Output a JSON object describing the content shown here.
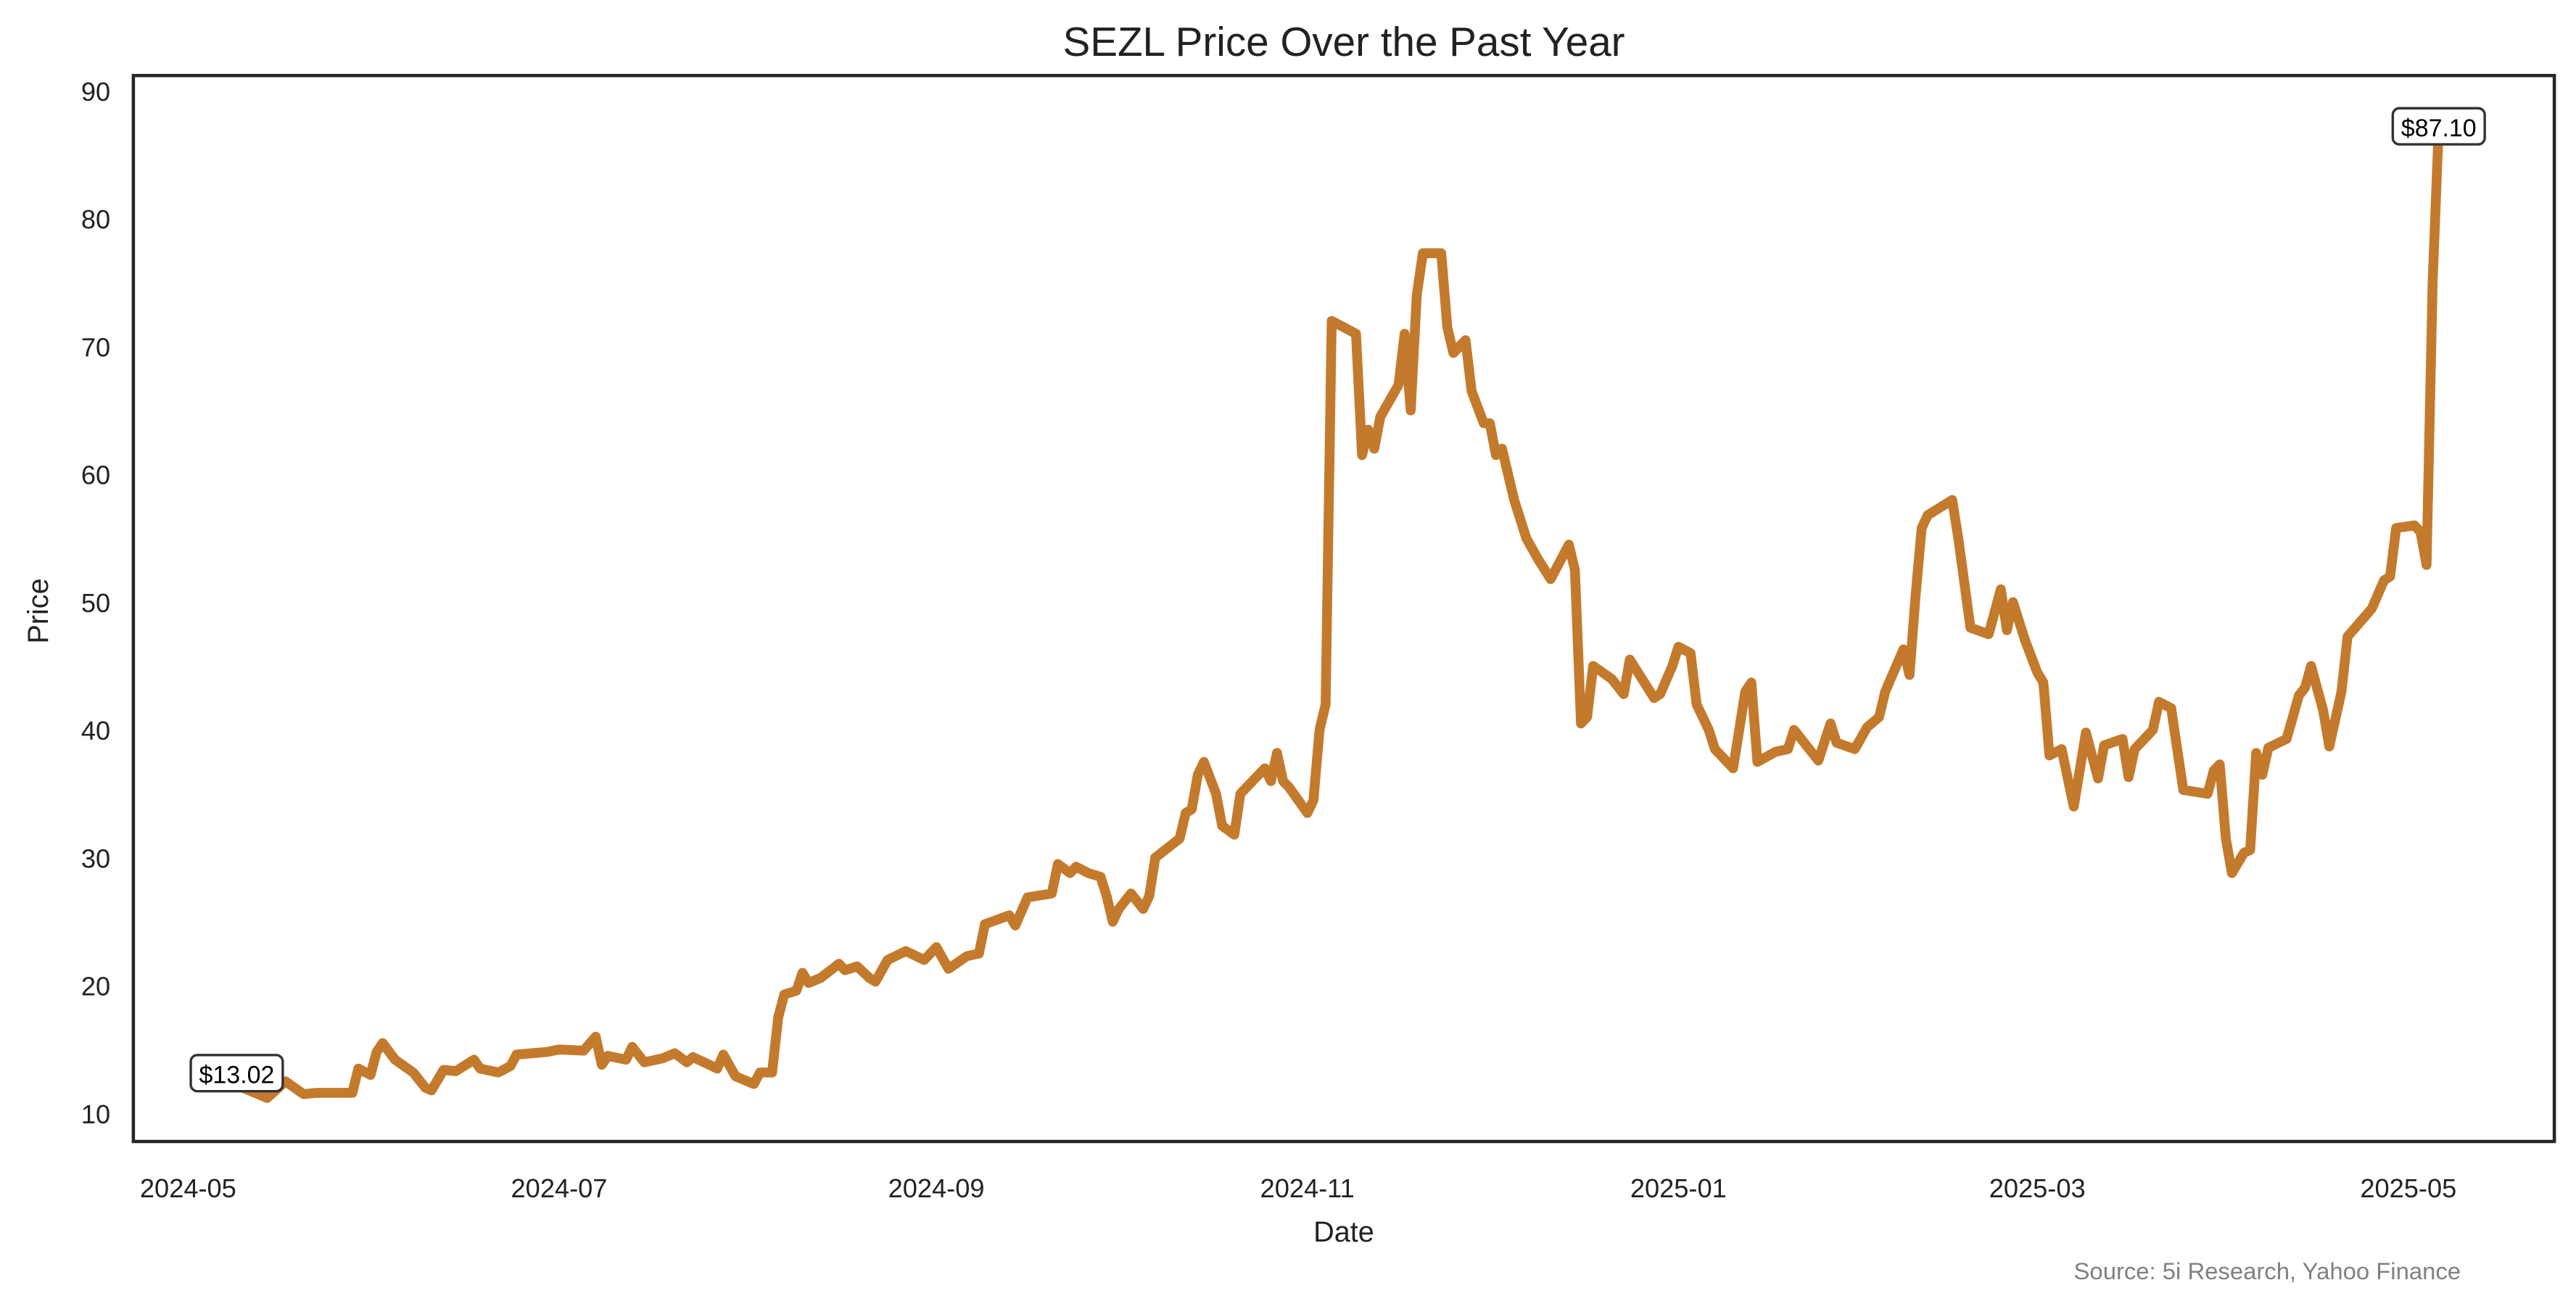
{
  "chart_data": {
    "type": "line",
    "title": "SEZL Price Over the Past Year",
    "xlabel": "Date",
    "ylabel": "Price",
    "source": "Source: 5i Research, Yahoo Finance",
    "color": "#C47A2C",
    "grid": false,
    "xlim": [
      "2024-04-22",
      "2025-05-25"
    ],
    "ylim": [
      7.8,
      91.2
    ],
    "x_ticks": [
      "2024-05",
      "2024-07",
      "2024-09",
      "2024-11",
      "2025-01",
      "2025-03",
      "2025-05"
    ],
    "y_ticks": [
      10,
      20,
      30,
      40,
      50,
      60,
      70,
      80,
      90
    ],
    "annotations": [
      {
        "date": "2024-05-09",
        "value": 13.02,
        "label": "$13.02"
      },
      {
        "date": "2025-05-06",
        "value": 87.1,
        "label": "$87.10"
      }
    ],
    "series": [
      {
        "name": "SEZL",
        "points": [
          [
            "2024-05-09",
            13.02
          ],
          [
            "2024-05-10",
            12.0
          ],
          [
            "2024-05-14",
            11.2
          ],
          [
            "2024-05-17",
            12.5
          ],
          [
            "2024-05-20",
            11.5
          ],
          [
            "2024-05-22",
            11.6
          ],
          [
            "2024-05-28",
            11.6
          ],
          [
            "2024-05-29",
            13.5
          ],
          [
            "2024-05-31",
            13.0
          ],
          [
            "2024-06-01",
            14.8
          ],
          [
            "2024-06-02",
            15.5
          ],
          [
            "2024-06-04",
            14.2
          ],
          [
            "2024-06-07",
            13.2
          ],
          [
            "2024-06-09",
            12.0
          ],
          [
            "2024-06-10",
            11.8
          ],
          [
            "2024-06-12",
            13.4
          ],
          [
            "2024-06-14",
            13.3
          ],
          [
            "2024-06-17",
            14.2
          ],
          [
            "2024-06-18",
            13.5
          ],
          [
            "2024-06-21",
            13.2
          ],
          [
            "2024-06-23",
            13.7
          ],
          [
            "2024-06-24",
            14.6
          ],
          [
            "2024-06-29",
            14.8
          ],
          [
            "2024-07-01",
            15.0
          ],
          [
            "2024-07-05",
            14.9
          ],
          [
            "2024-07-07",
            16.0
          ],
          [
            "2024-07-08",
            13.8
          ],
          [
            "2024-07-09",
            14.5
          ],
          [
            "2024-07-12",
            14.2
          ],
          [
            "2024-07-13",
            15.2
          ],
          [
            "2024-07-15",
            14.0
          ],
          [
            "2024-07-18",
            14.3
          ],
          [
            "2024-07-20",
            14.7
          ],
          [
            "2024-07-22",
            14.0
          ],
          [
            "2024-07-23",
            14.4
          ],
          [
            "2024-07-27",
            13.5
          ],
          [
            "2024-07-28",
            14.6
          ],
          [
            "2024-07-30",
            12.9
          ],
          [
            "2024-08-02",
            12.3
          ],
          [
            "2024-08-03",
            13.2
          ],
          [
            "2024-08-05",
            13.2
          ],
          [
            "2024-08-06",
            17.5
          ],
          [
            "2024-08-07",
            19.3
          ],
          [
            "2024-08-09",
            19.6
          ],
          [
            "2024-08-10",
            21.0
          ],
          [
            "2024-08-11",
            20.2
          ],
          [
            "2024-08-13",
            20.6
          ],
          [
            "2024-08-16",
            21.7
          ],
          [
            "2024-08-17",
            21.2
          ],
          [
            "2024-08-19",
            21.5
          ],
          [
            "2024-08-21",
            20.6
          ],
          [
            "2024-08-22",
            20.3
          ],
          [
            "2024-08-24",
            22.0
          ],
          [
            "2024-08-27",
            22.7
          ],
          [
            "2024-08-30",
            22.0
          ],
          [
            "2024-09-01",
            23.0
          ],
          [
            "2024-09-03",
            21.3
          ],
          [
            "2024-09-06",
            22.3
          ],
          [
            "2024-09-08",
            22.5
          ],
          [
            "2024-09-09",
            24.8
          ],
          [
            "2024-09-13",
            25.5
          ],
          [
            "2024-09-14",
            24.7
          ],
          [
            "2024-09-16",
            26.9
          ],
          [
            "2024-09-20",
            27.2
          ],
          [
            "2024-09-21",
            29.5
          ],
          [
            "2024-09-23",
            28.8
          ],
          [
            "2024-09-24",
            29.3
          ],
          [
            "2024-09-26",
            28.8
          ],
          [
            "2024-09-28",
            28.5
          ],
          [
            "2024-09-29",
            27.0
          ],
          [
            "2024-09-30",
            25.0
          ],
          [
            "2024-10-01",
            26.0
          ],
          [
            "2024-10-03",
            27.2
          ],
          [
            "2024-10-05",
            26.0
          ],
          [
            "2024-10-06",
            27.0
          ],
          [
            "2024-10-07",
            30.0
          ],
          [
            "2024-10-11",
            31.5
          ],
          [
            "2024-10-12",
            33.5
          ],
          [
            "2024-10-13",
            33.8
          ],
          [
            "2024-10-14",
            36.5
          ],
          [
            "2024-10-15",
            37.5
          ],
          [
            "2024-10-17",
            35.0
          ],
          [
            "2024-10-18",
            32.5
          ],
          [
            "2024-10-20",
            31.8
          ],
          [
            "2024-10-21",
            35.0
          ],
          [
            "2024-10-23",
            36.0
          ],
          [
            "2024-10-25",
            37.0
          ],
          [
            "2024-10-26",
            36.0
          ],
          [
            "2024-10-27",
            38.2
          ],
          [
            "2024-10-28",
            36.0
          ],
          [
            "2024-10-29",
            35.5
          ],
          [
            "2024-11-01",
            33.5
          ],
          [
            "2024-11-02",
            34.5
          ],
          [
            "2024-11-03",
            40.0
          ],
          [
            "2024-11-04",
            42.0
          ],
          [
            "2024-11-05",
            72.0
          ],
          [
            "2024-11-09",
            71.0
          ],
          [
            "2024-11-10",
            61.5
          ],
          [
            "2024-11-11",
            63.5
          ],
          [
            "2024-11-12",
            62.0
          ],
          [
            "2024-11-13",
            64.5
          ],
          [
            "2024-11-16",
            67.0
          ],
          [
            "2024-11-17",
            71.0
          ],
          [
            "2024-11-18",
            65.0
          ],
          [
            "2024-11-19",
            74.0
          ],
          [
            "2024-11-20",
            77.3
          ],
          [
            "2024-11-23",
            77.3
          ],
          [
            "2024-11-24",
            71.5
          ],
          [
            "2024-11-25",
            69.5
          ],
          [
            "2024-11-27",
            70.5
          ],
          [
            "2024-11-28",
            66.5
          ],
          [
            "2024-11-30",
            64.0
          ],
          [
            "2024-12-01",
            64.0
          ],
          [
            "2024-12-02",
            61.5
          ],
          [
            "2024-12-03",
            62.0
          ],
          [
            "2024-12-05",
            58.0
          ],
          [
            "2024-12-07",
            55.0
          ],
          [
            "2024-12-09",
            53.3
          ],
          [
            "2024-12-11",
            51.8
          ],
          [
            "2024-12-14",
            54.5
          ],
          [
            "2024-12-15",
            52.5
          ],
          [
            "2024-12-16",
            40.5
          ],
          [
            "2024-12-17",
            41.0
          ],
          [
            "2024-12-18",
            45.0
          ],
          [
            "2024-12-21",
            44.0
          ],
          [
            "2024-12-23",
            42.8
          ],
          [
            "2024-12-24",
            45.5
          ],
          [
            "2024-12-26",
            44.0
          ],
          [
            "2024-12-28",
            42.5
          ],
          [
            "2024-12-29",
            42.8
          ],
          [
            "2024-12-31",
            45.0
          ],
          [
            "2025-01-01",
            46.5
          ],
          [
            "2025-01-03",
            46.0
          ],
          [
            "2025-01-04",
            42.0
          ],
          [
            "2025-01-06",
            40.0
          ],
          [
            "2025-01-07",
            38.5
          ],
          [
            "2025-01-10",
            37.0
          ],
          [
            "2025-01-12",
            43.0
          ],
          [
            "2025-01-13",
            43.7
          ],
          [
            "2025-01-14",
            37.5
          ],
          [
            "2025-01-17",
            38.3
          ],
          [
            "2025-01-19",
            38.5
          ],
          [
            "2025-01-20",
            40.0
          ],
          [
            "2025-01-24",
            37.6
          ],
          [
            "2025-01-26",
            40.5
          ],
          [
            "2025-01-27",
            39.0
          ],
          [
            "2025-01-30",
            38.5
          ],
          [
            "2025-02-01",
            40.2
          ],
          [
            "2025-02-03",
            41.0
          ],
          [
            "2025-02-04",
            43.0
          ],
          [
            "2025-02-07",
            46.3
          ],
          [
            "2025-02-08",
            44.3
          ],
          [
            "2025-02-09",
            50.5
          ],
          [
            "2025-02-10",
            55.8
          ],
          [
            "2025-02-11",
            56.8
          ],
          [
            "2025-02-15",
            58.0
          ],
          [
            "2025-02-16",
            55.0
          ],
          [
            "2025-02-18",
            48.0
          ],
          [
            "2025-02-21",
            47.5
          ],
          [
            "2025-02-23",
            51.0
          ],
          [
            "2025-02-24",
            47.8
          ],
          [
            "2025-02-25",
            50.0
          ],
          [
            "2025-02-27",
            47.0
          ],
          [
            "2025-03-01",
            44.5
          ],
          [
            "2025-03-02",
            43.7
          ],
          [
            "2025-03-03",
            38.0
          ],
          [
            "2025-03-05",
            38.5
          ],
          [
            "2025-03-07",
            34.0
          ],
          [
            "2025-03-09",
            39.8
          ],
          [
            "2025-03-11",
            36.2
          ],
          [
            "2025-03-12",
            38.8
          ],
          [
            "2025-03-15",
            39.3
          ],
          [
            "2025-03-16",
            36.3
          ],
          [
            "2025-03-17",
            38.5
          ],
          [
            "2025-03-20",
            40.0
          ],
          [
            "2025-03-21",
            42.2
          ],
          [
            "2025-03-23",
            41.7
          ],
          [
            "2025-03-25",
            35.3
          ],
          [
            "2025-03-29",
            35.0
          ],
          [
            "2025-03-30",
            36.8
          ],
          [
            "2025-03-31",
            37.3
          ],
          [
            "2025-04-01",
            31.5
          ],
          [
            "2025-04-02",
            28.8
          ],
          [
            "2025-04-04",
            30.4
          ],
          [
            "2025-04-05",
            30.6
          ],
          [
            "2025-04-06",
            38.2
          ],
          [
            "2025-04-07",
            36.5
          ],
          [
            "2025-04-08",
            38.6
          ],
          [
            "2025-04-11",
            39.3
          ],
          [
            "2025-04-13",
            42.7
          ],
          [
            "2025-04-14",
            43.3
          ],
          [
            "2025-04-15",
            45.0
          ],
          [
            "2025-04-17",
            41.5
          ],
          [
            "2025-04-18",
            38.7
          ],
          [
            "2025-04-20",
            43.0
          ],
          [
            "2025-04-21",
            47.3
          ],
          [
            "2025-04-25",
            49.5
          ],
          [
            "2025-04-27",
            51.7
          ],
          [
            "2025-04-28",
            52.0
          ],
          [
            "2025-04-29",
            55.8
          ],
          [
            "2025-05-02",
            56.0
          ],
          [
            "2025-05-03",
            55.5
          ],
          [
            "2025-05-04",
            52.9
          ],
          [
            "2025-05-05",
            75.0
          ],
          [
            "2025-05-06",
            87.1
          ]
        ]
      }
    ]
  }
}
